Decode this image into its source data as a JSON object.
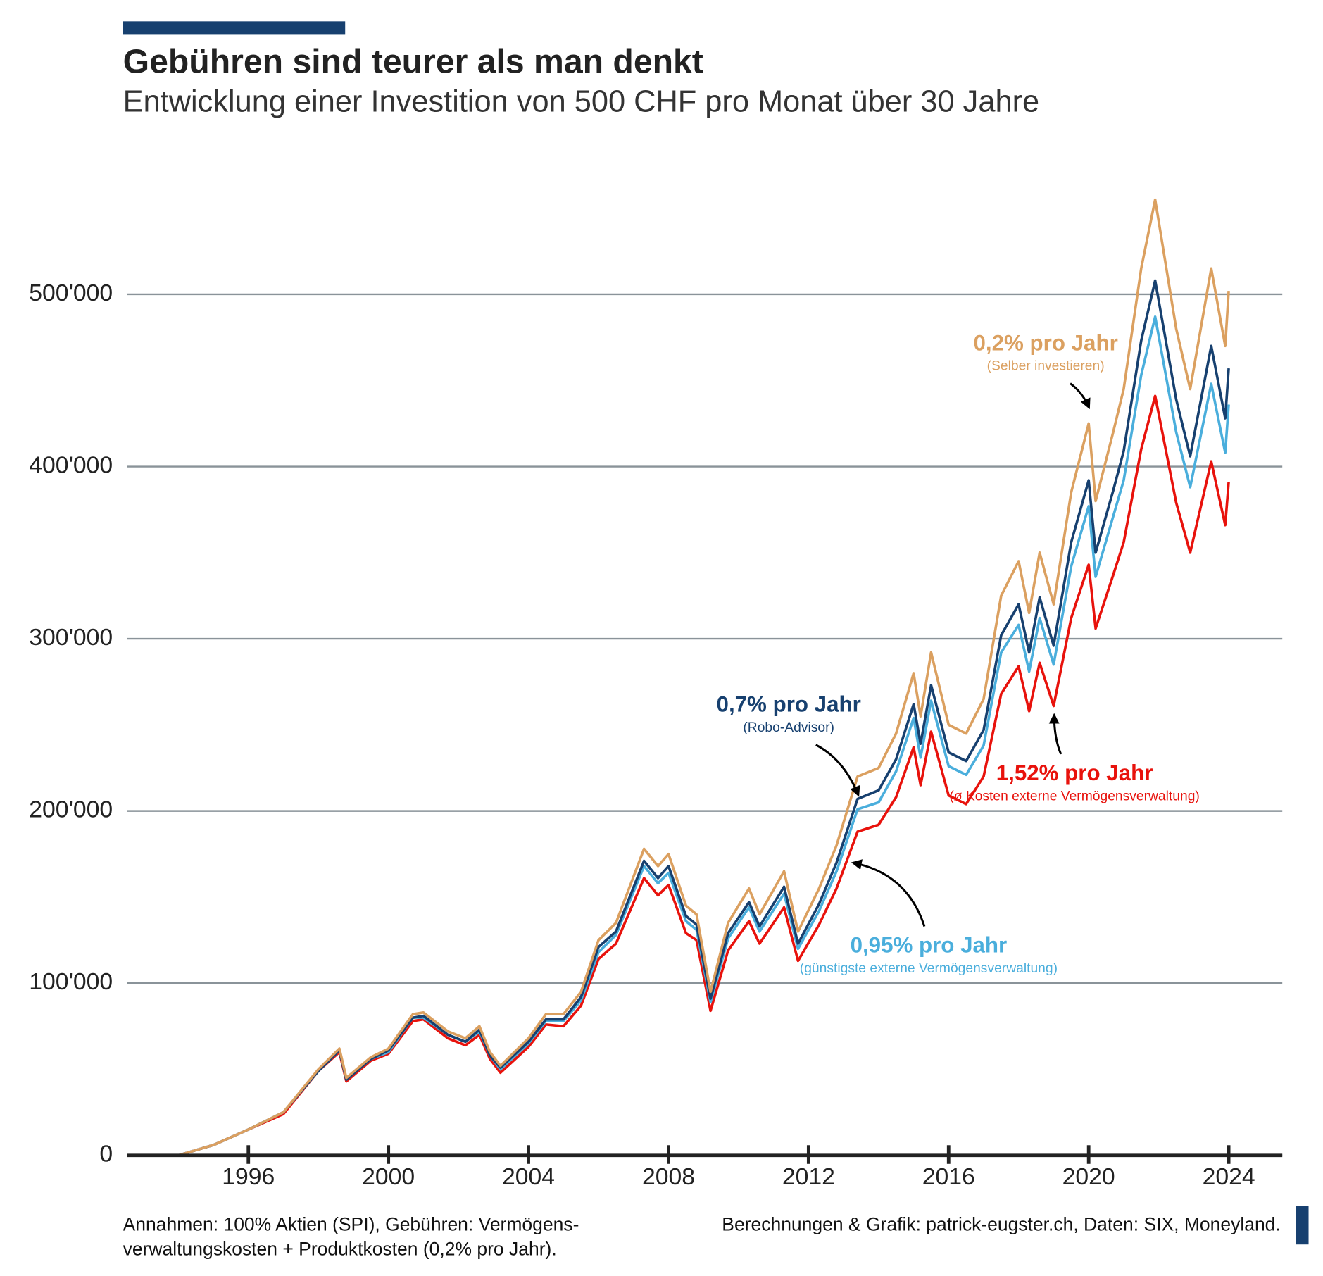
{
  "chart_data": {
    "type": "line",
    "title": "Gebühren sind teurer als man denkt",
    "subtitle": "Entwicklung einer Investition von 500 CHF pro Monat über 30 Jahre",
    "footnote_left": [
      "Annahmen: 100% Aktien (SPI), Gebühren: Vermögens-",
      "verwaltungskosten + Produktkosten (0,2% pro Jahr)."
    ],
    "footnote_right": "Berechnungen & Grafik: patrick-eugster.ch, Daten: SIX, Moneyland.",
    "x": [
      1994.0,
      1995.0,
      1996.0,
      1997.0,
      1998.0,
      1998.6,
      1998.8,
      1999.5,
      2000.0,
      2000.7,
      2001.0,
      2001.7,
      2002.2,
      2002.6,
      2002.9,
      2003.2,
      2004.0,
      2004.5,
      2005.0,
      2005.5,
      2006.0,
      2006.5,
      2007.3,
      2007.7,
      2008.0,
      2008.5,
      2008.8,
      2009.2,
      2009.7,
      2010.3,
      2010.6,
      2011.3,
      2011.7,
      2012.3,
      2012.8,
      2013.4,
      2014.0,
      2014.5,
      2015.0,
      2015.2,
      2015.5,
      2016.0,
      2016.5,
      2017.0,
      2017.5,
      2018.0,
      2018.3,
      2018.6,
      2019.0,
      2019.5,
      2020.0,
      2020.2,
      2020.7,
      2021.0,
      2021.5,
      2021.9,
      2022.5,
      2022.9,
      2023.5,
      2023.9,
      2024.0
    ],
    "series": [
      {
        "name": "0,2% pro Jahr",
        "note": "(Selber investieren)",
        "color": "#dba060",
        "values": [
          0,
          6000,
          15000,
          25000,
          50000,
          62000,
          45000,
          57000,
          62000,
          82000,
          83000,
          72000,
          68000,
          75000,
          60000,
          52000,
          68000,
          82000,
          82000,
          95000,
          125000,
          135000,
          178000,
          168000,
          175000,
          145000,
          140000,
          95000,
          135000,
          155000,
          140000,
          165000,
          130000,
          155000,
          180000,
          220000,
          225000,
          245000,
          280000,
          255000,
          292000,
          250000,
          245000,
          265000,
          325000,
          345000,
          315000,
          350000,
          320000,
          385000,
          425000,
          380000,
          420000,
          445000,
          515000,
          555000,
          480000,
          445000,
          515000,
          470000,
          502000
        ]
      },
      {
        "name": "0,7% pro Jahr",
        "note": "(Robo-Advisor)",
        "color": "#17406f",
        "values": [
          0,
          6000,
          15000,
          25000,
          49000,
          61000,
          44000,
          56000,
          61000,
          80000,
          81000,
          70000,
          66000,
          73000,
          58000,
          51000,
          66000,
          79000,
          79000,
          92000,
          121000,
          130000,
          171000,
          161000,
          168000,
          139000,
          134000,
          91000,
          129000,
          147000,
          133000,
          156000,
          123000,
          146000,
          170000,
          207000,
          212000,
          230000,
          262000,
          239000,
          273000,
          234000,
          229000,
          247000,
          302000,
          320000,
          292000,
          324000,
          296000,
          356000,
          392000,
          350000,
          386000,
          409000,
          473000,
          508000,
          439000,
          406000,
          470000,
          428000,
          457000
        ]
      },
      {
        "name": "0,95% pro Jahr",
        "note": "(günstigste externe Vermögensverwaltung)",
        "color": "#4aaedc",
        "values": [
          0,
          6000,
          15000,
          25000,
          49000,
          61000,
          44000,
          56000,
          60000,
          80000,
          80000,
          70000,
          66000,
          72000,
          58000,
          50000,
          65000,
          78000,
          78000,
          90000,
          118000,
          128000,
          168000,
          158000,
          164000,
          136000,
          131000,
          89000,
          126000,
          144000,
          130000,
          152000,
          120000,
          142000,
          165000,
          201000,
          205000,
          223000,
          254000,
          231000,
          264000,
          226000,
          221000,
          238000,
          292000,
          308000,
          281000,
          312000,
          285000,
          342000,
          377000,
          336000,
          371000,
          392000,
          453000,
          487000,
          420000,
          388000,
          448000,
          408000,
          436000
        ]
      },
      {
        "name": "1,52% pro Jahr",
        "note": "(ø Kosten externe Vermögensverwaltung)",
        "color": "#e8120c",
        "values": [
          0,
          6000,
          15000,
          24000,
          49000,
          60000,
          43000,
          55000,
          59000,
          78000,
          79000,
          68000,
          64000,
          70000,
          56000,
          48000,
          63000,
          76000,
          75000,
          87000,
          114000,
          123000,
          161000,
          151000,
          157000,
          129000,
          125000,
          84000,
          119000,
          136000,
          123000,
          144000,
          113000,
          134000,
          155000,
          188000,
          192000,
          208000,
          237000,
          215000,
          246000,
          209000,
          204000,
          220000,
          268000,
          284000,
          258000,
          286000,
          261000,
          312000,
          343000,
          306000,
          337000,
          356000,
          410000,
          441000,
          379000,
          350000,
          403000,
          366000,
          391000
        ]
      }
    ],
    "xlim": [
      1992.54,
      2025.53
    ],
    "xticks": [
      1996,
      2000,
      2004,
      2008,
      2012,
      2016,
      2020,
      2024
    ],
    "ylim": [
      0,
      560000
    ],
    "yticks": [
      0,
      {
        "value": 100000,
        "label": "100'000"
      },
      {
        "value": 200000,
        "label": "200'000"
      },
      {
        "value": 300000,
        "label": "300'000"
      },
      {
        "value": 400000,
        "label": "400'000"
      },
      {
        "value": 500000,
        "label": "500'000"
      }
    ],
    "grid": true
  }
}
